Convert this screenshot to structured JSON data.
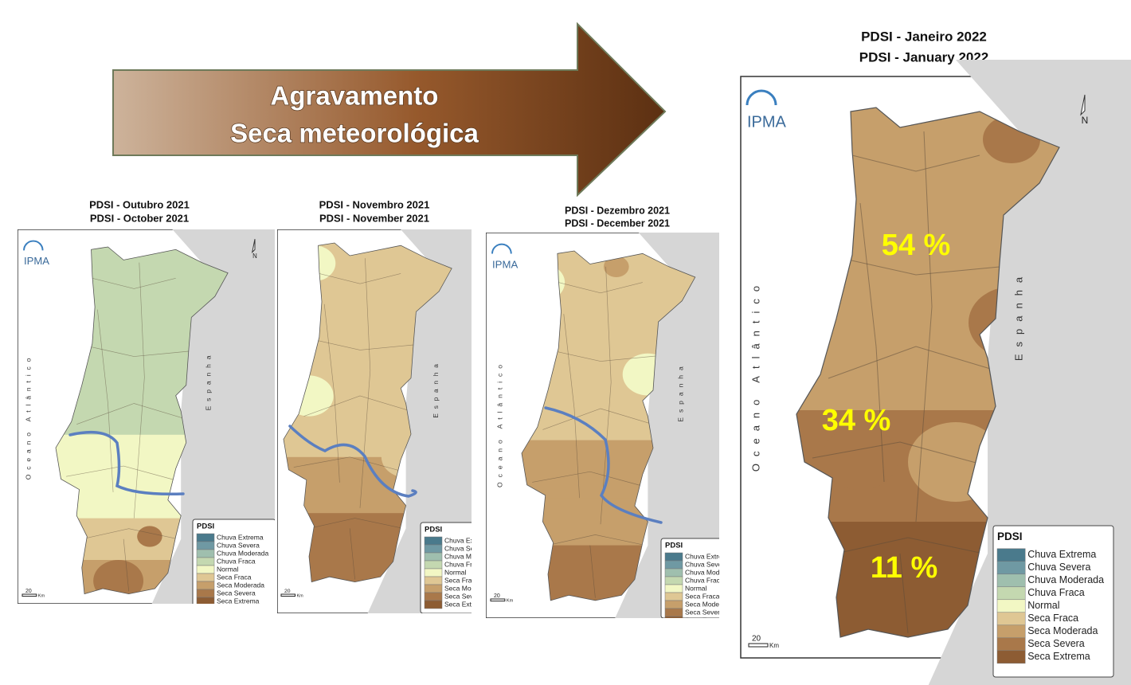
{
  "banner": {
    "line1": "Agravamento",
    "line2": "Seca meteorológica"
  },
  "maps": [
    {
      "title_pt": "PDSI - Outubro 2021",
      "title_en": "PDSI - October 2021"
    },
    {
      "title_pt": "PDSI - Novembro 2021",
      "title_en": "PDSI - November 2021"
    },
    {
      "title_pt": "PDSI - Dezembro 2021",
      "title_en": "PDSI - December 2021"
    },
    {
      "title_pt": "PDSI - Janeiro 2022",
      "title_en": "PDSI - January 2022",
      "percentages": [
        "54 %",
        "34 %",
        "11 %"
      ]
    }
  ],
  "logo": "IPMA",
  "north": "N",
  "ocean": "Oceano Atlântico",
  "land": "Espanha",
  "scale": {
    "value": "20",
    "unit": "Km"
  },
  "legend": {
    "title": "PDSI",
    "items": [
      "Chuva Extrema",
      "Chuva Severa",
      "Chuva Moderada",
      "Chuva Fraca",
      "Normal",
      "Seca Fraca",
      "Seca Moderada",
      "Seca Severa",
      "Seca Extrema"
    ]
  }
}
